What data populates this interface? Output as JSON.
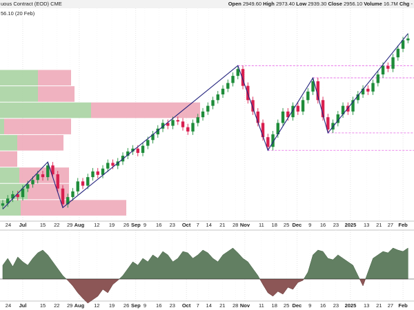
{
  "chart_data": {
    "type": "candlestick",
    "title": "uous Contract (EOD) CME",
    "last_label": "56.10 (20 Feb)",
    "header": {
      "open_label": "Open",
      "open": "2949.60",
      "high_label": "High",
      "high": "2973.40",
      "low_label": "Low",
      "low": "2939.30",
      "close_label": "Close",
      "close": "2956.10",
      "volume_label": "Volume",
      "volume": "16.7M",
      "chg_label": "Chg",
      "chg": "-"
    },
    "ylim": [
      2294,
      3062
    ],
    "xlim": [
      -0.55,
      82.2
    ],
    "open": [
      2370,
      2378,
      2395,
      2410,
      2400,
      2430,
      2445,
      2460,
      2480,
      2470,
      2511,
      2480,
      2430,
      2375,
      2400,
      2420,
      2455,
      2440,
      2470,
      2490,
      2478,
      2500,
      2520,
      2510,
      2525,
      2545,
      2560,
      2570,
      2555,
      2580,
      2600,
      2620,
      2640,
      2660,
      2650,
      2670,
      2665,
      2645,
      2630,
      2660,
      2680,
      2700,
      2720,
      2740,
      2760,
      2780,
      2800,
      2825,
      2849,
      2790,
      2740,
      2700,
      2660,
      2610,
      2576,
      2620,
      2660,
      2700,
      2680,
      2720,
      2700,
      2740,
      2770,
      2806,
      2740,
      2680,
      2637,
      2660,
      2690,
      2720,
      2700,
      2740,
      2760,
      2780,
      2770,
      2800,
      2830,
      2860,
      2850,
      2890,
      2920,
      2949.6
    ],
    "high": [
      2390,
      2407,
      2422,
      2422,
      2442,
      2457,
      2472,
      2492,
      2492,
      2523,
      2523,
      2492,
      2442,
      2412,
      2432,
      2467,
      2467,
      2482,
      2502,
      2502,
      2512,
      2532,
      2532,
      2537,
      2557,
      2572,
      2582,
      2582,
      2592,
      2612,
      2632,
      2652,
      2672,
      2672,
      2682,
      2682,
      2677,
      2657,
      2672,
      2692,
      2712,
      2732,
      2752,
      2772,
      2792,
      2812,
      2837,
      2861,
      2861,
      2802,
      2752,
      2712,
      2672,
      2622,
      2632,
      2672,
      2712,
      2712,
      2732,
      2732,
      2752,
      2782,
      2818,
      2818,
      2752,
      2692,
      2672,
      2702,
      2732,
      2732,
      2752,
      2772,
      2792,
      2792,
      2812,
      2842,
      2872,
      2872,
      2902,
      2932,
      2962,
      2973.4
    ],
    "low": [
      2358,
      2366,
      2383,
      2388,
      2388,
      2418,
      2433,
      2448,
      2458,
      2458,
      2468,
      2418,
      2363,
      2363,
      2388,
      2408,
      2428,
      2428,
      2458,
      2466,
      2466,
      2488,
      2498,
      2498,
      2513,
      2533,
      2548,
      2543,
      2543,
      2568,
      2588,
      2608,
      2628,
      2638,
      2638,
      2653,
      2633,
      2618,
      2618,
      2648,
      2668,
      2688,
      2708,
      2728,
      2748,
      2768,
      2788,
      2813,
      2778,
      2728,
      2688,
      2648,
      2598,
      2564,
      2564,
      2608,
      2648,
      2668,
      2668,
      2688,
      2688,
      2728,
      2758,
      2728,
      2668,
      2625,
      2625,
      2648,
      2678,
      2688,
      2688,
      2728,
      2748,
      2758,
      2758,
      2788,
      2818,
      2838,
      2838,
      2878,
      2908,
      2939.3
    ],
    "close": [
      2378,
      2395,
      2410,
      2400,
      2430,
      2445,
      2460,
      2480,
      2470,
      2511,
      2480,
      2430,
      2375,
      2400,
      2420,
      2455,
      2440,
      2470,
      2490,
      2478,
      2500,
      2520,
      2510,
      2525,
      2545,
      2560,
      2570,
      2555,
      2580,
      2600,
      2620,
      2640,
      2660,
      2650,
      2670,
      2665,
      2645,
      2630,
      2660,
      2680,
      2700,
      2720,
      2740,
      2760,
      2780,
      2800,
      2825,
      2849,
      2790,
      2740,
      2700,
      2660,
      2610,
      2576,
      2620,
      2660,
      2700,
      2680,
      2720,
      2700,
      2740,
      2770,
      2806,
      2740,
      2680,
      2637,
      2660,
      2690,
      2720,
      2700,
      2740,
      2760,
      2780,
      2770,
      2800,
      2830,
      2860,
      2850,
      2890,
      2920,
      2950,
      2956.1
    ],
    "up_color": "#1e8c3a",
    "down_color": "#d81f4f",
    "xticks": [
      {
        "value": 1.1,
        "label": "24"
      },
      {
        "value": 4,
        "label": "Jul"
      },
      {
        "value": 8,
        "label": "15"
      },
      {
        "value": 10.8,
        "label": "22"
      },
      {
        "value": 13.4,
        "label": "29"
      },
      {
        "value": 15.3,
        "label": "Aug"
      },
      {
        "value": 18.8,
        "label": "12"
      },
      {
        "value": 21.8,
        "label": "19"
      },
      {
        "value": 24.7,
        "label": "26"
      },
      {
        "value": 26.6,
        "label": "Sep"
      },
      {
        "value": 28.4,
        "label": "9"
      },
      {
        "value": 31.2,
        "label": "16"
      },
      {
        "value": 33.9,
        "label": "23"
      },
      {
        "value": 36.7,
        "label": "Oct"
      },
      {
        "value": 39,
        "label": "7"
      },
      {
        "value": 41.2,
        "label": "14"
      },
      {
        "value": 43.9,
        "label": "21"
      },
      {
        "value": 46.5,
        "label": "28"
      },
      {
        "value": 48.4,
        "label": "Nov"
      },
      {
        "value": 51.7,
        "label": "11"
      },
      {
        "value": 54.3,
        "label": "18"
      },
      {
        "value": 56.7,
        "label": "25"
      },
      {
        "value": 58.8,
        "label": "Dec"
      },
      {
        "value": 61.4,
        "label": "9"
      },
      {
        "value": 64,
        "label": "16"
      },
      {
        "value": 66.6,
        "label": "23"
      },
      {
        "value": 69.5,
        "label": "2025"
      },
      {
        "value": 72.7,
        "label": "13"
      },
      {
        "value": 75.2,
        "label": "21"
      },
      {
        "value": 77.5,
        "label": "27"
      },
      {
        "value": 80,
        "label": "Feb"
      }
    ],
    "major_ticks": [
      "Jul",
      "Aug",
      "Sep",
      "Oct",
      "Nov",
      "Dec",
      "2025",
      "Feb"
    ],
    "zigzag": {
      "x": [
        0,
        9,
        12,
        47,
        53,
        62,
        65,
        81
      ],
      "y": [
        2358,
        2523,
        2363,
        2861,
        2564,
        2818,
        2625,
        2973.4
      ],
      "color": "#24247e"
    },
    "levels": [
      {
        "value": 2861,
        "from": 47
      },
      {
        "value": 2818,
        "from": 62
      },
      {
        "value": 2625,
        "from": 65
      },
      {
        "value": 2564,
        "from": 53
      }
    ],
    "level_color": "#e040e0",
    "volume_profile": {
      "bins": [
        2847,
        2790,
        2733,
        2676,
        2619,
        2562,
        2505,
        2448,
        2391,
        2334
      ],
      "up": [
        55,
        55,
        132,
        6,
        25,
        0,
        28,
        40,
        30
      ],
      "down": [
        48,
        53,
        158,
        97,
        67,
        25,
        72,
        60,
        153
      ],
      "up_color": "#a9d3a2",
      "down_color": "#eeaab9"
    },
    "oscillator": {
      "ylim": [
        -35,
        70
      ],
      "values": [
        20,
        30,
        18,
        32,
        25,
        20,
        30,
        38,
        42,
        35,
        25,
        15,
        5,
        -2,
        -10,
        -20,
        -28,
        -35,
        -30,
        -25,
        -15,
        -20,
        -8,
        -2,
        5,
        15,
        25,
        20,
        30,
        25,
        35,
        30,
        40,
        35,
        25,
        30,
        40,
        38,
        30,
        35,
        42,
        38,
        30,
        25,
        35,
        40,
        45,
        38,
        30,
        25,
        15,
        5,
        -8,
        -20,
        -25,
        -18,
        -22,
        -12,
        -15,
        -5,
        -2,
        10,
        35,
        42,
        40,
        30,
        28,
        35,
        30,
        25,
        20,
        5,
        -10,
        10,
        30,
        35,
        40,
        38,
        45,
        42,
        40,
        45
      ],
      "pos_color": "#627f62",
      "neg_color": "#8c5656"
    }
  }
}
